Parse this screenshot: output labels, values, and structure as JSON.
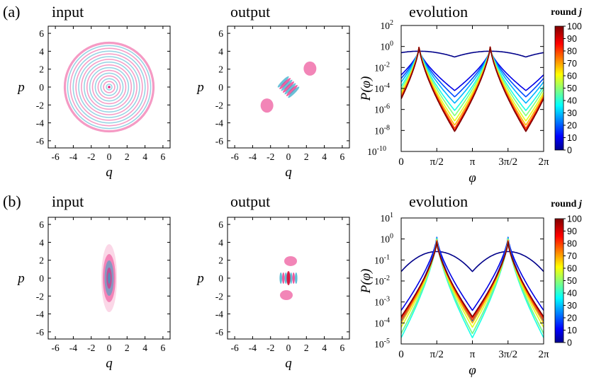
{
  "panel_labels": [
    "(a)",
    "(b)"
  ],
  "wigner": {
    "xlabel": "q",
    "ylabel": "p",
    "ticks": [
      "-6",
      "-4",
      "-2",
      "0",
      "2",
      "4",
      "6"
    ],
    "tick_values": [
      -6,
      -4,
      -2,
      0,
      2,
      4,
      6
    ],
    "range": [
      -6.8,
      6.8
    ],
    "colors": {
      "positive": "#e8207c",
      "negative": "#2ca7c8"
    }
  },
  "panels": [
    {
      "input_title": "input",
      "output_title": "output",
      "evolution_title": "evolution"
    },
    {
      "input_title": "input",
      "output_title": "output",
      "evolution_title": "evolution"
    }
  ],
  "colorbar": {
    "label_prefix": "round ",
    "label_var": "j",
    "ticks": [
      "0",
      "10",
      "20",
      "30",
      "40",
      "50",
      "60",
      "70",
      "80",
      "90",
      "100"
    ],
    "tick_values": [
      0,
      10,
      20,
      30,
      40,
      50,
      60,
      70,
      80,
      90,
      100
    ],
    "colormap": "jet"
  },
  "chart_data": [
    {
      "type": "line",
      "title": "evolution",
      "xlabel": "φ",
      "ylabel_func": "P",
      "ylabel_arg": "φ",
      "yscale": "log",
      "xlim": [
        0,
        6.2832
      ],
      "ylim_exp": [
        -10,
        2
      ],
      "xticks": [
        "0",
        "π/2",
        "π",
        "3π/2",
        "2π"
      ],
      "xtick_values": [
        0,
        1.5708,
        3.1416,
        4.7124,
        6.2832
      ],
      "ytick_exps": [
        2,
        0,
        -2,
        -4,
        -6,
        -8,
        -10
      ],
      "series_rounds": [
        1,
        10,
        20,
        30,
        40,
        50,
        60,
        70,
        80,
        90,
        100
      ],
      "peak_log10": [
        -0.45,
        -0.3,
        -0.2,
        -0.12,
        -0.05,
        0.0,
        0.02,
        0.04,
        0.05,
        0.05,
        0.05
      ],
      "min_log10": [
        -1.0,
        -4.2,
        -4.8,
        -5.4,
        -6.1,
        -6.6,
        -7.1,
        -7.5,
        -7.8,
        -8.0,
        -8.1
      ],
      "peak_positions": [
        0.79,
        3.93
      ],
      "min_positions": [
        2.36,
        5.5
      ]
    },
    {
      "type": "line",
      "title": "evolution",
      "xlabel": "φ",
      "ylabel_func": "P",
      "ylabel_arg": "φ",
      "yscale": "log",
      "xlim": [
        0,
        6.2832
      ],
      "ylim_exp": [
        -5,
        1
      ],
      "xticks": [
        "0",
        "π/2",
        "π",
        "3π/2",
        "2π"
      ],
      "xtick_values": [
        0,
        1.5708,
        3.1416,
        4.7124,
        6.2832
      ],
      "ytick_exps": [
        1,
        0,
        -1,
        -2,
        -3,
        -4,
        -5
      ],
      "series_rounds": [
        1,
        10,
        20,
        30,
        40,
        50,
        60,
        70,
        80,
        90,
        100
      ],
      "peak_log10": [
        -0.6,
        0.08,
        0.07,
        0.05,
        0.02,
        0.0,
        -0.04,
        -0.07,
        -0.1,
        -0.12,
        -0.15
      ],
      "min_log10": [
        -1.55,
        -3.4,
        -3.9,
        -4.5,
        -4.7,
        -4.5,
        -4.2,
        -4.0,
        -3.85,
        -3.75,
        -3.7
      ],
      "peak_positions": [
        1.5708,
        4.7124
      ],
      "min_positions": [
        3.1416,
        6.2832
      ]
    }
  ]
}
